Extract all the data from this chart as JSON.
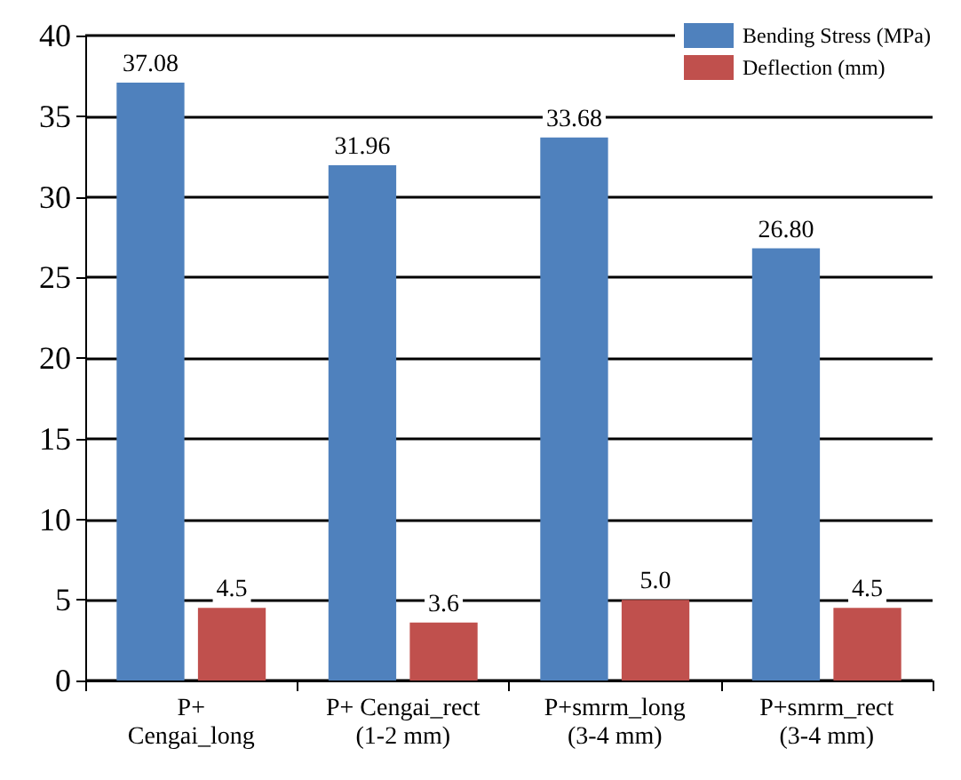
{
  "chart_data": {
    "type": "bar",
    "categories": [
      "P+\nCengai_long",
      "P+ Cengai_rect\n(1-2 mm)",
      "P+smrm_long\n(3-4 mm)",
      "P+smrm_rect\n(3-4 mm)"
    ],
    "series": [
      {
        "name": "Bending Stress (MPa)",
        "color": "#4f81bd",
        "values": [
          37.08,
          31.96,
          33.68,
          26.8
        ],
        "value_labels": [
          "37.08",
          "31.96",
          "33.68",
          "26.80"
        ]
      },
      {
        "name": "Deflection (mm)",
        "color": "#c0504d",
        "values": [
          4.5,
          3.6,
          5.0,
          4.5
        ],
        "value_labels": [
          "4.5",
          "3.6",
          "5.0",
          "4.5"
        ]
      }
    ],
    "ylim": [
      0,
      40
    ],
    "yticks": [
      0,
      5,
      10,
      15,
      20,
      25,
      30,
      35,
      40
    ],
    "grid": "y",
    "legend": "top right"
  }
}
